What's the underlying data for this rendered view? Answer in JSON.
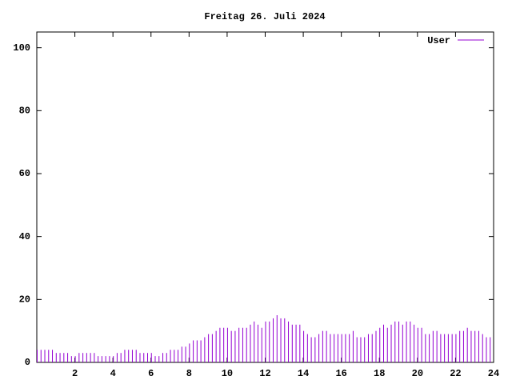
{
  "chart_data": {
    "type": "impulse",
    "title": "Freitag 26. Juli 2024",
    "x": [
      0,
      0.2,
      0.4,
      0.6,
      0.8,
      1,
      1.2,
      1.4,
      1.6,
      1.8,
      2,
      2.2,
      2.4,
      2.6,
      2.8,
      3,
      3.2,
      3.4,
      3.6,
      3.8,
      4,
      4.2,
      4.4,
      4.6,
      4.8,
      5,
      5.2,
      5.4,
      5.6,
      5.8,
      6,
      6.2,
      6.4,
      6.6,
      6.8,
      7,
      7.2,
      7.4,
      7.6,
      7.8,
      8,
      8.2,
      8.4,
      8.6,
      8.8,
      9,
      9.2,
      9.4,
      9.6,
      9.8,
      10,
      10.2,
      10.4,
      10.6,
      10.8,
      11,
      11.2,
      11.4,
      11.6,
      11.8,
      12,
      12.2,
      12.4,
      12.6,
      12.8,
      13,
      13.2,
      13.4,
      13.6,
      13.8,
      14,
      14.2,
      14.4,
      14.6,
      14.8,
      15,
      15.2,
      15.4,
      15.6,
      15.8,
      16,
      16.2,
      16.4,
      16.6,
      16.8,
      17,
      17.2,
      17.4,
      17.6,
      17.8,
      18,
      18.2,
      18.4,
      18.6,
      18.8,
      19,
      19.2,
      19.4,
      19.6,
      19.8,
      20,
      20.2,
      20.4,
      20.6,
      20.8,
      21,
      21.2,
      21.4,
      21.6,
      21.8,
      22,
      22.2,
      22.4,
      22.6,
      22.8,
      23,
      23.2,
      23.4,
      23.6,
      23.8
    ],
    "series": [
      {
        "name": "User",
        "color": "#9400d3",
        "values": [
          4,
          4,
          4,
          4,
          4,
          3,
          3,
          3,
          3,
          2,
          2,
          3,
          3,
          3,
          3,
          3,
          2,
          2,
          2,
          2,
          2,
          3,
          3,
          4,
          4,
          4,
          4,
          3,
          3,
          3,
          3,
          2,
          2,
          3,
          3,
          4,
          4,
          4,
          5,
          5,
          6,
          7,
          7,
          7,
          8,
          9,
          9,
          10,
          11,
          11,
          11,
          10,
          10,
          11,
          11,
          11,
          12,
          13,
          12,
          11,
          13,
          13,
          14,
          15,
          14,
          14,
          13,
          12,
          12,
          12,
          10,
          9,
          8,
          8,
          9,
          10,
          10,
          9,
          9,
          9,
          9,
          9,
          9,
          10,
          8,
          8,
          8,
          9,
          9,
          10,
          11,
          12,
          11,
          12,
          13,
          13,
          12,
          13,
          13,
          12,
          11,
          11,
          9,
          9,
          10,
          10,
          9,
          9,
          9,
          9,
          9,
          10,
          10,
          11,
          10,
          10,
          10,
          9,
          8,
          8
        ]
      }
    ],
    "xlim": [
      0,
      24
    ],
    "xticks": [
      2,
      4,
      6,
      8,
      10,
      12,
      14,
      16,
      18,
      20,
      22,
      24
    ],
    "ylim": [
      0,
      105
    ],
    "yticks": [
      0,
      20,
      40,
      60,
      80,
      100
    ]
  }
}
